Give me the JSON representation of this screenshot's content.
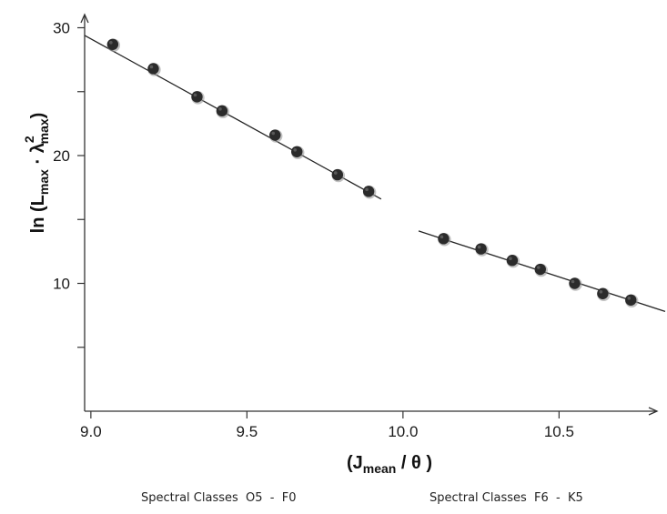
{
  "chart_data": {
    "type": "scatter",
    "xlim": [
      8.98,
      11.0
    ],
    "ylim": [
      0,
      31.5
    ],
    "x_ticks": [
      "9.0",
      "9.5",
      "10.0",
      "10.5"
    ],
    "x_tick_values": [
      9.0,
      9.5,
      10.0,
      10.5
    ],
    "y_ticks": [
      "10",
      "20",
      "30"
    ],
    "y_tick_values": [
      10,
      20,
      30
    ],
    "y_minor_ticks": [
      5,
      15,
      25
    ],
    "grid": false,
    "xlabel": {
      "open": "(",
      "main": "J",
      "sub": "mean",
      "rest": " / θ",
      "close": " )"
    },
    "ylabel": {
      "fn": "ln (",
      "l_main": "L",
      "l_sub": "max",
      "dot": " · ",
      "lam": "λ",
      "lam_sup": "2",
      "lam_sub": "max",
      "close": ")"
    },
    "series": [
      {
        "caption": "Spectral Classes  O5  -  F0",
        "x": [
          9.07,
          9.2,
          9.34,
          9.42,
          9.59,
          9.66,
          9.79,
          9.89
        ],
        "y": [
          28.7,
          26.8,
          24.6,
          23.5,
          21.6,
          20.3,
          18.5,
          17.2
        ],
        "fit": {
          "x": [
            8.98,
            9.93
          ],
          "y": [
            29.4,
            16.6
          ]
        }
      },
      {
        "caption": "Spectral Classes  F6  -  K5",
        "x": [
          10.13,
          10.25,
          10.35,
          10.44,
          10.55,
          10.64,
          10.73
        ],
        "y": [
          13.5,
          12.7,
          11.8,
          11.1,
          10.0,
          9.2,
          8.7
        ],
        "fit": {
          "x": [
            10.05,
            10.84
          ],
          "y": [
            14.1,
            7.8
          ]
        }
      }
    ],
    "colors": {
      "marker": "#2b2b2b",
      "marker_halo": "#9a9a9a",
      "line": "#222222",
      "axis": "#333333"
    }
  }
}
